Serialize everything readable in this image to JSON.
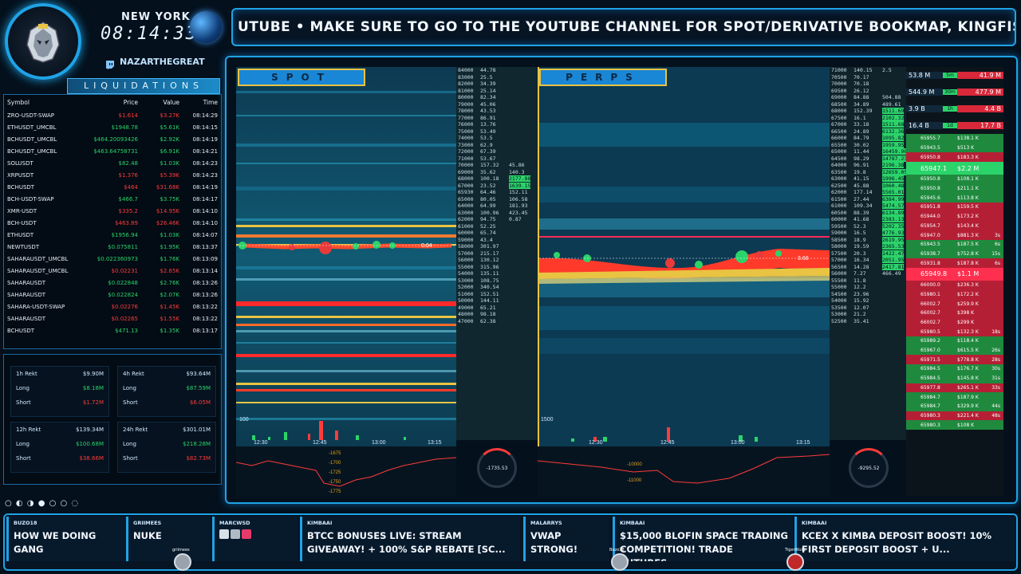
{
  "header": {
    "city": "NEW YORK",
    "clock": "08:14:33",
    "handle": "NAZARTHEGREAT",
    "ticker": "UTUBE • MAKE SURE TO GO TO THE YOUTUBE CHANNEL FOR SPOT/DERIVATIVE BOOKMAP, KINGFISHER,"
  },
  "liquidations": {
    "title": "LIQUIDATIONS",
    "columns": [
      "Symbol",
      "Price",
      "Value",
      "Time"
    ],
    "rows": [
      {
        "symbol": "ZRO-USDT-SWAP",
        "price": "$1.614",
        "value": "$3.27K",
        "time": "08:14:29",
        "side": "red"
      },
      {
        "symbol": "ETHUSDT_UMCBL",
        "price": "$1948.78",
        "value": "$5.61K",
        "time": "08:14:15",
        "side": "green"
      },
      {
        "symbol": "BCHUSDT_UMCBL",
        "price": "$464.20093426",
        "value": "$2.92K",
        "time": "08:14:19",
        "side": "green"
      },
      {
        "symbol": "BCHUSDT_UMCBL",
        "price": "$463.64758731",
        "value": "$6.91K",
        "time": "08:14:21",
        "side": "green"
      },
      {
        "symbol": "SOLUSDT",
        "price": "$82.48",
        "value": "$1.03K",
        "time": "08:14:23",
        "side": "green"
      },
      {
        "symbol": "XRPUSDT",
        "price": "$1.376",
        "value": "$5.39K",
        "time": "08:14:23",
        "side": "red"
      },
      {
        "symbol": "BCHUSDT",
        "price": "$464",
        "value": "$31.68K",
        "time": "08:14:19",
        "side": "red"
      },
      {
        "symbol": "BCH-USDT-SWAP",
        "price": "$466.7",
        "value": "$3.75K",
        "time": "08:14:17",
        "side": "green"
      },
      {
        "symbol": "XMR-USDT",
        "price": "$335.2",
        "value": "$14.95K",
        "time": "08:14:10",
        "side": "red"
      },
      {
        "symbol": "BCH-USDT",
        "price": "$463.89",
        "value": "$26.46K",
        "time": "08:14:10",
        "side": "red"
      },
      {
        "symbol": "ETHUSDT",
        "price": "$1956.94",
        "value": "$1.03K",
        "time": "08:14:07",
        "side": "green"
      },
      {
        "symbol": "NEWTUSDT",
        "price": "$0.075811",
        "value": "$1.95K",
        "time": "08:13:37",
        "side": "green"
      },
      {
        "symbol": "SAHARAUSDT_UMCBL",
        "price": "$0.022360973",
        "value": "$1.76K",
        "time": "08:13:09",
        "side": "green"
      },
      {
        "symbol": "SAHARAUSDT_UMCBL",
        "price": "$0.02231",
        "value": "$2.65K",
        "time": "08:13:14",
        "side": "red"
      },
      {
        "symbol": "SAHARAUSDT",
        "price": "$0.022848",
        "value": "$2.76K",
        "time": "08:13:26",
        "side": "green"
      },
      {
        "symbol": "SAHARAUSDT",
        "price": "$0.022824",
        "value": "$2.07K",
        "time": "08:13:26",
        "side": "green"
      },
      {
        "symbol": "SAHARA-USDT-SWAP",
        "price": "$0.02276",
        "value": "$1.45K",
        "time": "08:13:22",
        "side": "red"
      },
      {
        "symbol": "SAHARAUSDT",
        "price": "$0.02265",
        "value": "$1.55K",
        "time": "08:13:22",
        "side": "red"
      },
      {
        "symbol": "BCHUSDT",
        "price": "$471.13",
        "value": "$1.35K",
        "time": "08:13:17",
        "side": "green"
      }
    ]
  },
  "rekt": [
    {
      "label": "1h Rekt",
      "total": "$9.90M",
      "long": "$8.18M",
      "short": "$1.72M"
    },
    {
      "label": "4h Rekt",
      "total": "$93.64M",
      "long": "$87.59M",
      "short": "$6.05M"
    },
    {
      "label": "12h Rekt",
      "total": "$139.34M",
      "long": "$100.68M",
      "short": "$38.66M"
    },
    {
      "label": "24h Rekt",
      "total": "$301.01M",
      "long": "$218.28M",
      "short": "$82.73M"
    }
  ],
  "rekt_labels": {
    "long": "Long",
    "short": "Short"
  },
  "panels": {
    "spot": "SPOT",
    "perps": "PERPS"
  },
  "spot_ladder": [
    [
      "84000",
      "44.78",
      ""
    ],
    [
      "83000",
      "25.5",
      ""
    ],
    [
      "82000",
      "34.39",
      ""
    ],
    [
      "81000",
      "25.14",
      ""
    ],
    [
      "80000",
      "82.34",
      ""
    ],
    [
      "79000",
      "45.06",
      ""
    ],
    [
      "78000",
      "43.53",
      ""
    ],
    [
      "77000",
      "86.91",
      ""
    ],
    [
      "76000",
      "13.76",
      ""
    ],
    [
      "75000",
      "53.49",
      ""
    ],
    [
      "74000",
      "53.5",
      ""
    ],
    [
      "73000",
      "62.9",
      ""
    ],
    [
      "72000",
      "67.39",
      ""
    ],
    [
      "71000",
      "53.67",
      ""
    ],
    [
      "70000",
      "157.32",
      "45.86"
    ],
    [
      "69000",
      "35.62",
      "140.3"
    ],
    [
      "68000",
      "100.18",
      "2177.88"
    ],
    [
      "67000",
      "23.52",
      "1639.15"
    ],
    [
      "65930",
      "64.46",
      "152.11"
    ],
    [
      "65000",
      "80.05",
      "106.58"
    ],
    [
      "64000",
      "64.99",
      "181.93"
    ],
    [
      "63000",
      "100.96",
      "423.45"
    ],
    [
      "62000",
      "94.75",
      "0.87"
    ],
    [
      "61000",
      "52.25",
      ""
    ],
    [
      "60000",
      "65.74",
      ""
    ],
    [
      "59000",
      "43.4",
      ""
    ],
    [
      "58000",
      "301.97",
      ""
    ],
    [
      "57000",
      "215.17",
      ""
    ],
    [
      "56000",
      "130.12",
      ""
    ],
    [
      "55000",
      "315.96",
      ""
    ],
    [
      "54000",
      "135.11",
      ""
    ],
    [
      "53000",
      "108.75",
      ""
    ],
    [
      "52000",
      "340.54",
      ""
    ],
    [
      "51000",
      "152.51",
      ""
    ],
    [
      "50000",
      "144.11",
      ""
    ],
    [
      "49000",
      "65.21",
      ""
    ],
    [
      "48000",
      "98.18",
      ""
    ],
    [
      "47000",
      "62.38",
      ""
    ]
  ],
  "perps_ladder": [
    [
      "71000",
      "140.15",
      "2.5"
    ],
    [
      "70500",
      "70.17",
      ""
    ],
    [
      "70000",
      "70.18",
      ""
    ],
    [
      "69500",
      "26.12",
      ""
    ],
    [
      "69000",
      "84.88",
      "504.88"
    ],
    [
      "68500",
      "34.89",
      "489.61"
    ],
    [
      "68000",
      "152.39",
      "1511.69"
    ],
    [
      "67500",
      "16.1",
      "2102.32"
    ],
    [
      "67000",
      "33.18",
      "1511.68"
    ],
    [
      "66500",
      "24.89",
      "6132.36"
    ],
    [
      "66000",
      "84.79",
      "1095.82"
    ],
    [
      "65500",
      "30.02",
      "1959.95"
    ],
    [
      "65000",
      "11.44",
      "16459.96"
    ],
    [
      "64500",
      "98.29",
      "14787.23"
    ],
    [
      "64000",
      "96.91",
      "2196.38"
    ],
    [
      "63500",
      "19.8",
      "12659.05"
    ],
    [
      "63000",
      "41.15",
      "1996.45"
    ],
    [
      "62500",
      "45.88",
      "1060.48"
    ],
    [
      "62000",
      "177.14",
      "5565.01"
    ],
    [
      "61500",
      "27.44",
      "6384.99"
    ],
    [
      "61000",
      "109.34",
      "5474.57"
    ],
    [
      "60500",
      "88.39",
      "6134.89"
    ],
    [
      "60000",
      "41.68",
      "2383.13"
    ],
    [
      "59500",
      "52.3",
      "5202.35"
    ],
    [
      "59000",
      "16.5",
      "4776.93"
    ],
    [
      "58500",
      "18.9",
      "2619.95"
    ],
    [
      "58000",
      "19.59",
      "2365.53"
    ],
    [
      "57500",
      "20.3",
      "1422.47"
    ],
    [
      "57000",
      "16.34",
      "2051.95"
    ],
    [
      "56500",
      "14.28",
      "2417.81"
    ],
    [
      "56000",
      "7.27",
      "466.49"
    ],
    [
      "55500",
      "11.8",
      ""
    ],
    [
      "55000",
      "12.2",
      ""
    ],
    [
      "54500",
      "23.96",
      ""
    ],
    [
      "54000",
      "15.92",
      ""
    ],
    [
      "53500",
      "12.07",
      ""
    ],
    [
      "53000",
      "21.2",
      ""
    ],
    [
      "52500",
      "35.41",
      ""
    ]
  ],
  "spot_price_tag": "0.04",
  "perps_price_tag": "3.68",
  "spot_gauge": "-1735.53",
  "perps_gauge": "-9295.52",
  "spot_times": [
    "12:30",
    "12:45",
    "13:00",
    "13:15"
  ],
  "perps_times": [
    "12:30",
    "12:45",
    "13:00",
    "13:15"
  ],
  "spot_sub_ticks": [
    "-1675",
    "-1700",
    "-1725",
    "-1750",
    "-1775"
  ],
  "perps_sub_ticks": [
    "-10000",
    "-11000"
  ],
  "volume_label": "100",
  "perps_volume_label": "1500",
  "orderflow_top": [
    {
      "left": "53.8 M",
      "period": "5m",
      "right": "41.9 M"
    },
    {
      "left": "544.9 M",
      "period": "30m",
      "right": "477.9 M"
    },
    {
      "left": "3.9 B",
      "period": "1h",
      "right": "4.4 B"
    },
    {
      "left": "16.4 B",
      "period": "1d",
      "right": "17.7 B"
    }
  ],
  "orderflow_rows": [
    {
      "price": "65955.7",
      "size": "$138.1 K",
      "tag": "",
      "side": "green"
    },
    {
      "price": "65943.5",
      "size": "$513 K",
      "tag": "",
      "side": "green"
    },
    {
      "price": "65950.8",
      "size": "$183.3 K",
      "tag": "",
      "side": "red"
    },
    {
      "price": "65947.1",
      "size": "$2.2 M",
      "tag": "",
      "side": "green"
    },
    {
      "price": "65950.8",
      "size": "$108.1 K",
      "tag": "",
      "side": "green"
    },
    {
      "price": "65950.8",
      "size": "$211.1 K",
      "tag": "",
      "side": "green"
    },
    {
      "price": "65945.6",
      "size": "$113.8 K",
      "tag": "",
      "side": "green"
    },
    {
      "price": "65951.8",
      "size": "$159.5 K",
      "tag": "",
      "side": "red"
    },
    {
      "price": "65944.0",
      "size": "$173.2 K",
      "tag": "",
      "side": "red"
    },
    {
      "price": "65954.7",
      "size": "$143.4 K",
      "tag": "",
      "side": "red"
    },
    {
      "price": "65947.0",
      "size": "$881.3 K",
      "tag": "3s",
      "side": "red"
    },
    {
      "price": "65943.5",
      "size": "$187.5 K",
      "tag": "6s",
      "side": "green"
    },
    {
      "price": "65938.7",
      "size": "$752.8 K",
      "tag": "15s",
      "side": "green"
    },
    {
      "price": "65931.8",
      "size": "$187.8 K",
      "tag": "6s",
      "side": "red"
    },
    {
      "price": "65949.8",
      "size": "$1.1 M",
      "tag": "",
      "side": "red"
    },
    {
      "price": "66000.0",
      "size": "$236.3 K",
      "tag": "",
      "side": "red"
    },
    {
      "price": "65980.1",
      "size": "$172.2 K",
      "tag": "",
      "side": "red"
    },
    {
      "price": "66002.7",
      "size": "$259.9 K",
      "tag": "",
      "side": "red"
    },
    {
      "price": "66002.7",
      "size": "$398 K",
      "tag": "",
      "side": "red"
    },
    {
      "price": "66002.7",
      "size": "$299 K",
      "tag": "",
      "side": "red"
    },
    {
      "price": "65980.5",
      "size": "$132.3 K",
      "tag": "18s",
      "side": "red"
    },
    {
      "price": "65989.2",
      "size": "$118.4 K",
      "tag": "",
      "side": "green"
    },
    {
      "price": "65967.0",
      "size": "$615.5 K",
      "tag": "26s",
      "side": "green"
    },
    {
      "price": "65971.5",
      "size": "$778.8 K",
      "tag": "28s",
      "side": "red"
    },
    {
      "price": "65984.5",
      "size": "$176.7 K",
      "tag": "30s",
      "side": "green"
    },
    {
      "price": "65984.5",
      "size": "$145.8 K",
      "tag": "31s",
      "side": "green"
    },
    {
      "price": "65977.8",
      "size": "$265.1 K",
      "tag": "33s",
      "side": "red"
    },
    {
      "price": "65984.7",
      "size": "$187.9 K",
      "tag": "",
      "side": "green"
    },
    {
      "price": "65984.7",
      "size": "$329.9 K",
      "tag": "44s",
      "side": "green"
    },
    {
      "price": "65980.3",
      "size": "$221.4 K",
      "tag": "48s",
      "side": "red"
    },
    {
      "price": "65980.3",
      "size": "$108 K",
      "tag": "",
      "side": "green"
    }
  ],
  "chat": [
    {
      "user": "BUZO18",
      "message": "HOW WE DOING GANG"
    },
    {
      "user": "GRIIMEES",
      "message": "NUKE"
    },
    {
      "user": "MARCWSD",
      "message": ""
    },
    {
      "user": "KIMBAAI",
      "message": "BTCC BONUSES LIVE: STREAM GIVEAWAY! + 100% S&P REBATE [SC..."
    },
    {
      "user": "MALARRYS",
      "message": "VWAP STRONG!"
    },
    {
      "user": "KIMBAAI",
      "message": "$15,000 BLOFIN SPACE TRADING COMPETITION! TRADE FUTURES..."
    },
    {
      "user": "KIMBAAI",
      "message": "KCEX X KIMBA DEPOSIT BOOST! 10% FIRST DEPOSIT BOOST + U..."
    }
  ],
  "chat_avatar_names": [
    "griimees",
    "Buzo18",
    "TigerWulfe"
  ],
  "dot_controls": "○ ◐ ◑ ● ○ ○ ◌",
  "colors": {
    "accent": "#1fa3e6",
    "gold": "#e9c342",
    "red": "#ff3b3b",
    "green": "#2bd46a"
  }
}
